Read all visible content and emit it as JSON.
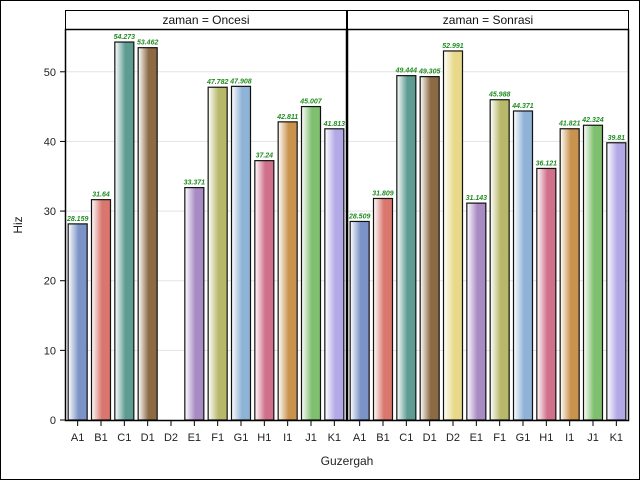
{
  "chart_data": {
    "type": "bar",
    "xlabel": "Guzergah",
    "ylabel": "Hiz",
    "ylim": [
      0,
      56
    ],
    "yticks": [
      0,
      10,
      20,
      30,
      40,
      50
    ],
    "grid": true,
    "categories": [
      "A1",
      "B1",
      "C1",
      "D1",
      "D2",
      "E1",
      "F1",
      "G1",
      "H1",
      "I1",
      "J1",
      "K1"
    ],
    "colors": [
      "#7b93c6",
      "#d9776e",
      "#5e9c92",
      "#8b6a44",
      "#e8d98a",
      "#a98bc4",
      "#b7b86a",
      "#8fb3d6",
      "#d0708a",
      "#c9934e",
      "#7fbf6f",
      "#b3a9e6"
    ],
    "panels": [
      {
        "title": "zaman = Oncesi",
        "values": [
          28.159,
          31.64,
          54.273,
          53.462,
          null,
          33.371,
          47.782,
          47.908,
          37.24,
          42.811,
          45.007,
          41.813
        ],
        "labels": [
          "28.159",
          "31.64",
          "54.273",
          "53.462",
          "",
          "33.371",
          "47.782",
          "47.908",
          "37.24",
          "42.811",
          "45.007",
          "41.813"
        ]
      },
      {
        "title": "zaman = Sonrasi",
        "values": [
          28.509,
          31.809,
          49.444,
          49.305,
          52.991,
          31.143,
          45.988,
          44.371,
          36.121,
          41.821,
          42.324,
          39.81
        ],
        "labels": [
          "28.509",
          "31.809",
          "49.444",
          "49.305",
          "52.991",
          "31.143",
          "45.988",
          "44.371",
          "36.121",
          "41.821",
          "42.324",
          "39.81"
        ]
      }
    ]
  }
}
